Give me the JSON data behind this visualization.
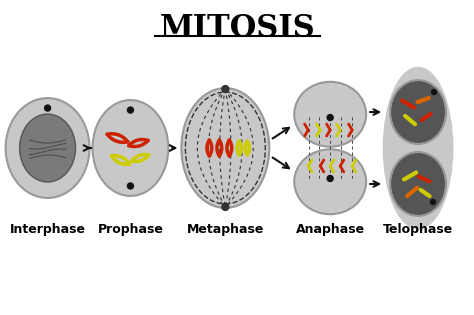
{
  "title": "MITOSIS",
  "title_fontsize": 22,
  "title_underline": true,
  "stages": [
    "Interphase",
    "Prophase",
    "Metaphase",
    "Anaphase",
    "Telophase"
  ],
  "stage_label_fontsize": 9,
  "bg_color": "#ffffff",
  "cell_color": "#c8c8c8",
  "cell_dark_color": "#888888",
  "nucleus_color": "#888888",
  "dark_cell_bg": "#555555",
  "spindle_color": "#444444",
  "dot_color": "#111111",
  "red_chrom": "#cc2200",
  "yellow_chrom": "#cccc00",
  "orange_chrom": "#dd6600",
  "arrow_color": "#111111"
}
